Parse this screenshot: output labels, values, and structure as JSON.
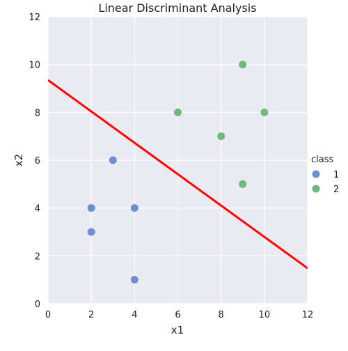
{
  "chart_data": {
    "type": "scatter",
    "title": "Linear Discriminant Analysis",
    "xlabel": "x1",
    "ylabel": "x2",
    "xlim": [
      0,
      12
    ],
    "ylim": [
      0,
      12
    ],
    "xticks": [
      0,
      2,
      4,
      6,
      8,
      10,
      12
    ],
    "yticks": [
      0,
      2,
      4,
      6,
      8,
      10,
      12
    ],
    "grid": true,
    "legend": {
      "title": "class",
      "placement": "right, outside plot",
      "entries": [
        "1",
        "2"
      ]
    },
    "series": [
      {
        "name": "1",
        "color": "#6d8fcc",
        "points": [
          [
            3,
            6
          ],
          [
            2,
            4
          ],
          [
            4,
            4
          ],
          [
            2,
            3
          ],
          [
            4,
            1
          ]
        ]
      },
      {
        "name": "2",
        "color": "#6fb97f",
        "points": [
          [
            9,
            10
          ],
          [
            6,
            8
          ],
          [
            10,
            8
          ],
          [
            8,
            7
          ],
          [
            9,
            5
          ]
        ]
      }
    ],
    "decision_boundary": {
      "color": "#ff0000",
      "points": [
        [
          0,
          9.35
        ],
        [
          12,
          1.48
        ]
      ]
    },
    "colors": {
      "plot_background": "#eaeaf2",
      "grid": "#ffffff"
    }
  }
}
